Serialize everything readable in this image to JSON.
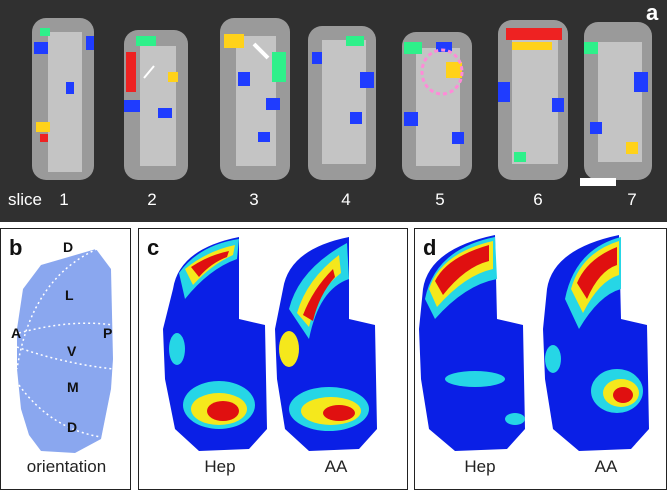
{
  "panels": {
    "a": {
      "letter": "a",
      "row_label": "slice",
      "slices": [
        "1",
        "2",
        "3",
        "4",
        "5",
        "6",
        "7"
      ]
    },
    "b": {
      "letter": "b",
      "regions": {
        "D_top": "D",
        "L": "L",
        "A": "A",
        "P": "P",
        "V": "V",
        "M": "M",
        "D_bottom": "D"
      },
      "caption": "orientation"
    },
    "c": {
      "letter": "c",
      "labels": [
        "Hep",
        "AA"
      ]
    },
    "d": {
      "letter": "d",
      "labels": [
        "Hep",
        "AA"
      ]
    }
  },
  "colors": {
    "panel_a_background": "#303030",
    "orientation_fill": "#8aa7ef",
    "heatmap_low": "#0a1fe6",
    "heatmap_mid": "#26d6e6",
    "heatmap_midhigh": "#f5e81c",
    "heatmap_high": "#e01010"
  }
}
